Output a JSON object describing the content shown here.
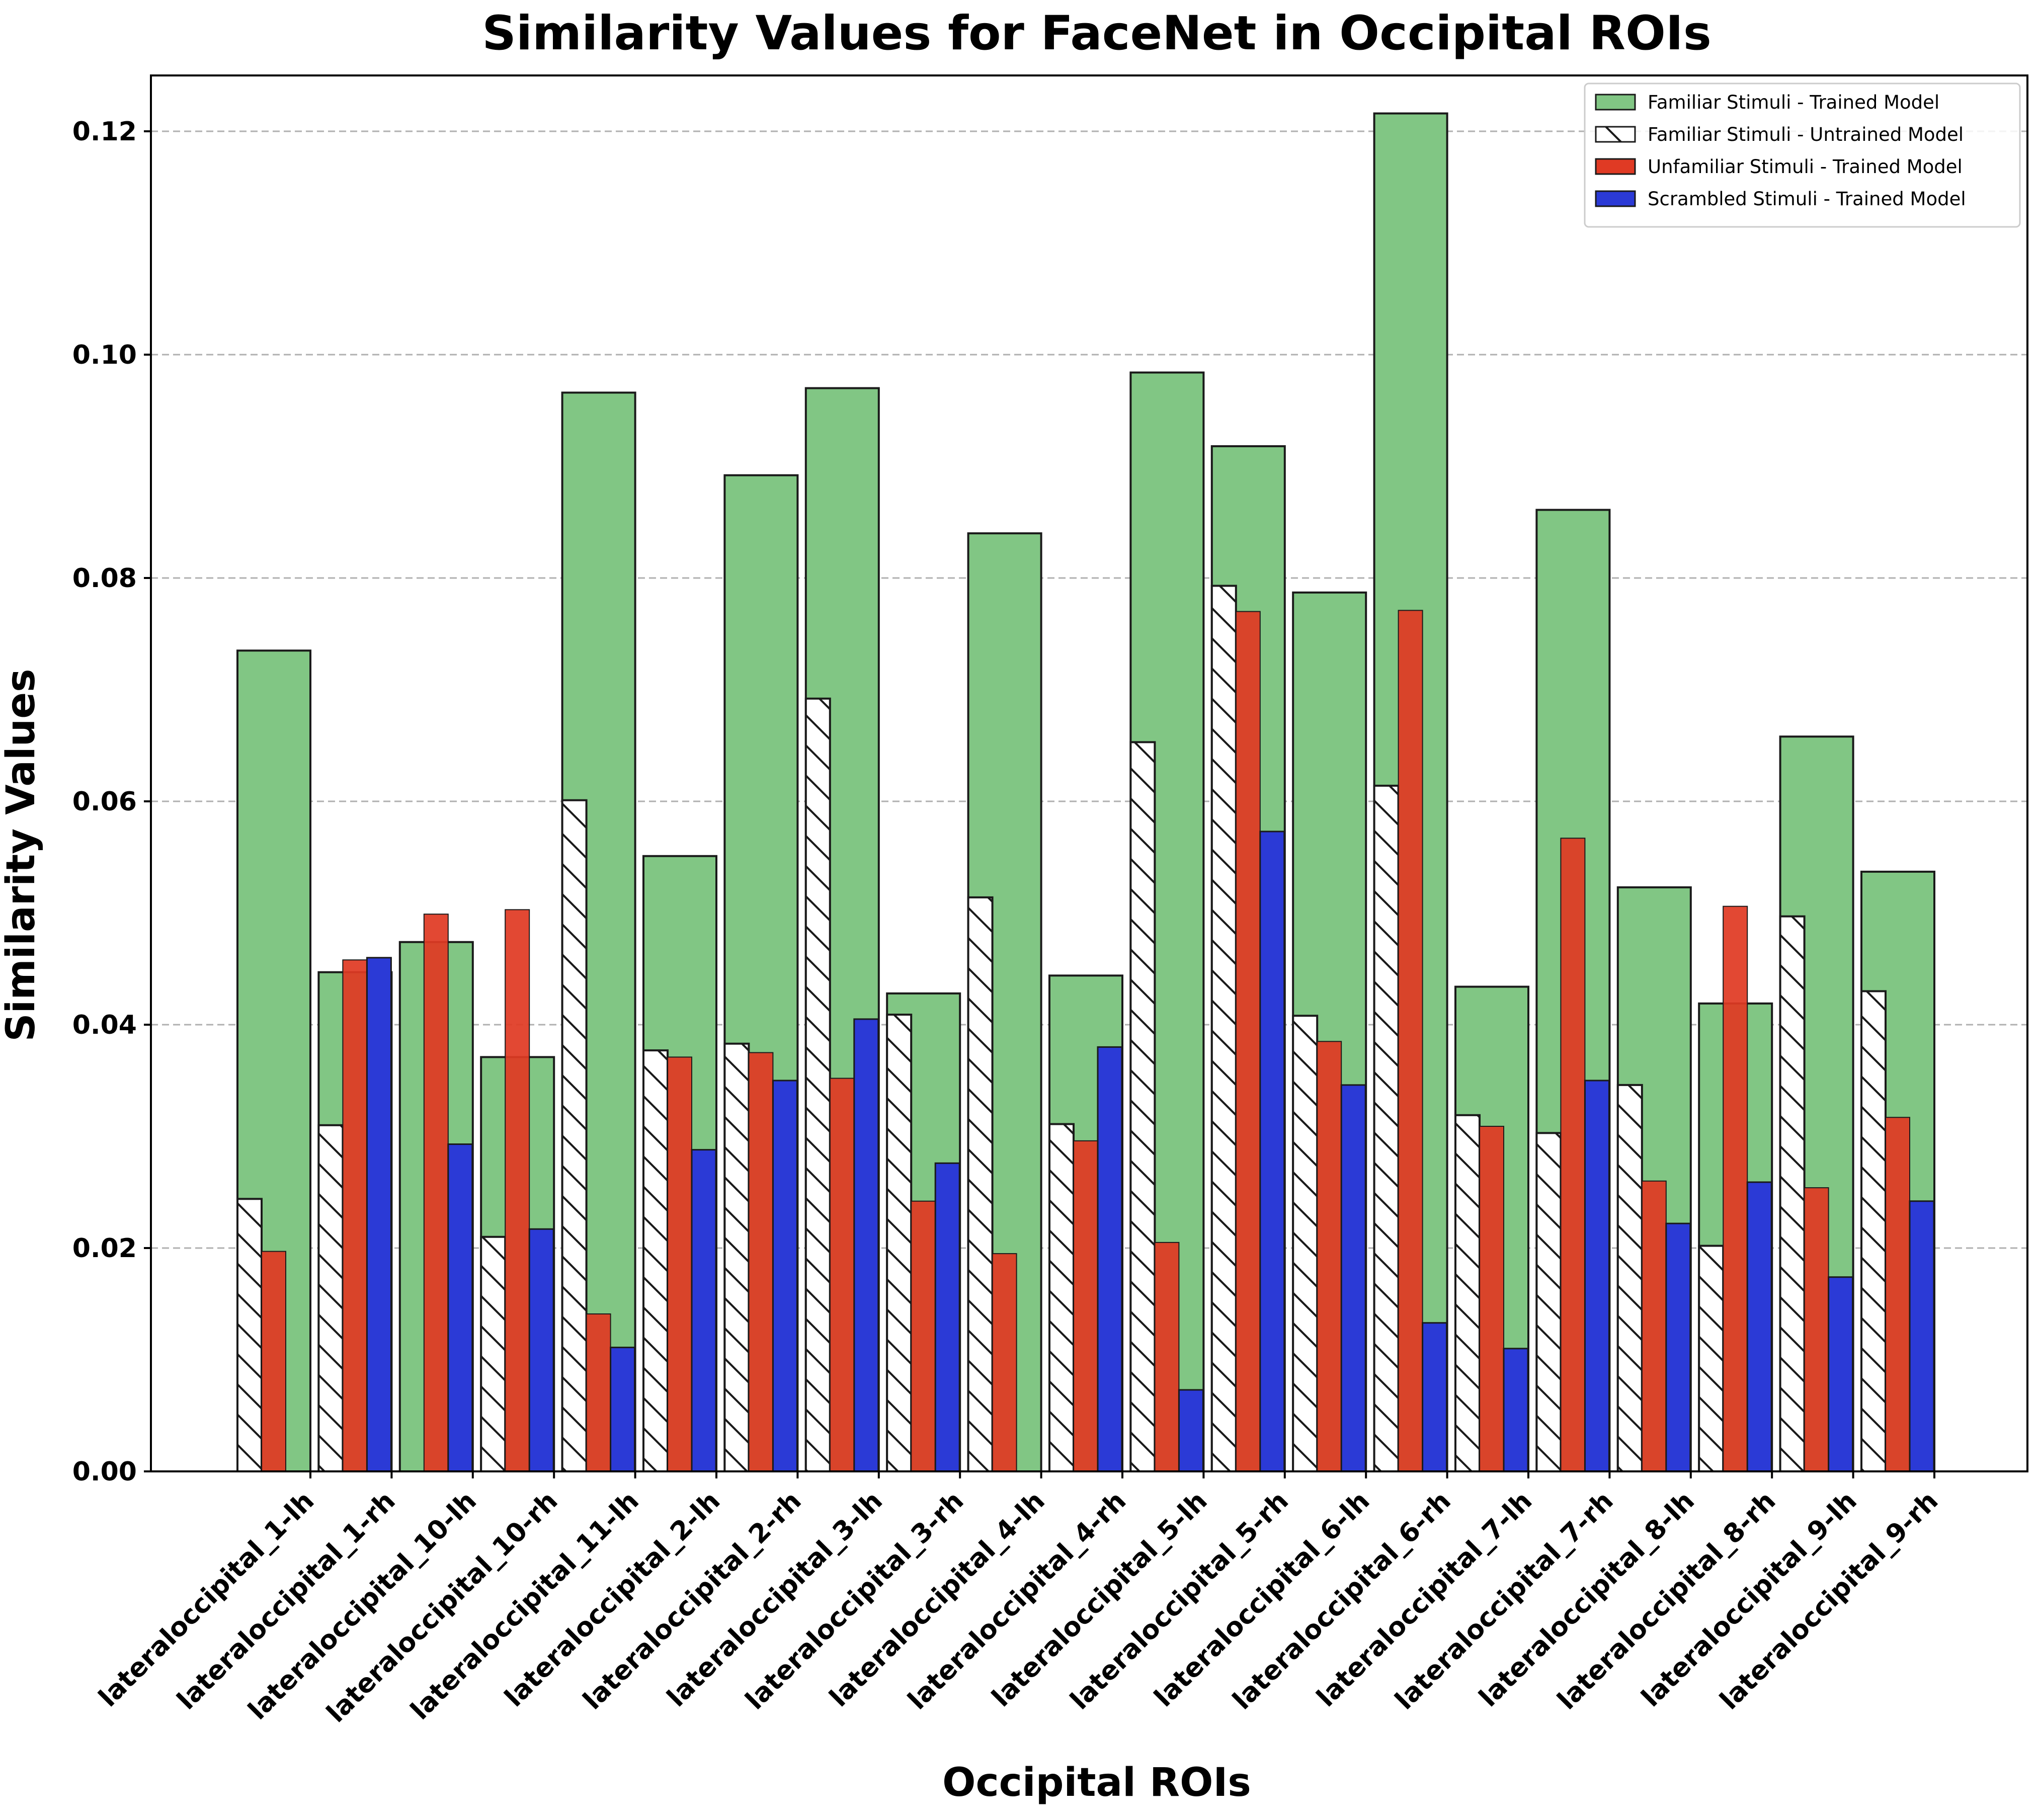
{
  "colors": {
    "familiar_trained": "#81c684",
    "familiar_untrained": "#ffffff",
    "unfamiliar_trained": "#e03a24",
    "scrambled_trained": "#2b3ad6",
    "edge": "#1a1a1a"
  },
  "chart_data": {
    "type": "bar",
    "title": "Similarity Values for FaceNet in Occipital ROIs",
    "xlabel": "Occipital ROIs",
    "ylabel": "Similarity Values",
    "ylim": [
      0,
      0.125
    ],
    "yticks": [
      "0.00",
      "0.02",
      "0.04",
      "0.06",
      "0.08",
      "0.10",
      "0.12"
    ],
    "ytick_values": [
      0,
      0.02,
      0.04,
      0.06,
      0.08,
      0.1,
      0.12
    ],
    "grid": "horizontal dashed",
    "legend_position": "top-right",
    "categories": [
      "lateraloccipital_1-lh",
      "lateraloccipital_1-rh",
      "lateraloccipital_10-lh",
      "lateraloccipital_10-rh",
      "lateraloccipital_11-lh",
      "lateraloccipital_2-lh",
      "lateraloccipital_2-rh",
      "lateraloccipital_3-lh",
      "lateraloccipital_3-rh",
      "lateraloccipital_4-lh",
      "lateraloccipital_4-rh",
      "lateraloccipital_5-lh",
      "lateraloccipital_5-rh",
      "lateraloccipital_6-lh",
      "lateraloccipital_6-rh",
      "lateraloccipital_7-lh",
      "lateraloccipital_7-rh",
      "lateraloccipital_8-lh",
      "lateraloccipital_8-rh",
      "lateraloccipital_9-lh",
      "lateraloccipital_9-rh"
    ],
    "series": [
      {
        "name": "Familiar Stimuli - Trained Model",
        "style": "green-wide",
        "values": [
          0.0735,
          0.0447,
          0.0474,
          0.0371,
          0.0966,
          0.0551,
          0.0892,
          0.097,
          0.0428,
          0.084,
          0.0444,
          0.0984,
          0.0918,
          0.0787,
          0.1216,
          0.0434,
          0.0861,
          0.0523,
          0.0419,
          0.0658,
          0.0537
        ]
      },
      {
        "name": "Familiar Stimuli - Untrained Model",
        "style": "white-hatched",
        "values": [
          0.0244,
          0.031,
          0.0,
          0.021,
          0.0601,
          0.0377,
          0.0383,
          0.0692,
          0.0409,
          0.0514,
          0.0311,
          0.0653,
          0.0793,
          0.0408,
          0.0614,
          0.0319,
          0.0303,
          0.0346,
          0.0202,
          0.0497,
          0.043
        ]
      },
      {
        "name": "Unfamiliar Stimuli - Trained Model",
        "style": "red",
        "values": [
          0.0197,
          0.0458,
          0.0499,
          0.0503,
          0.0141,
          0.0371,
          0.0375,
          0.0352,
          0.0242,
          0.0195,
          0.0296,
          0.0205,
          0.077,
          0.0385,
          0.0771,
          0.0309,
          0.0567,
          0.026,
          0.0506,
          0.0254,
          0.0317
        ]
      },
      {
        "name": "Scrambled Stimuli - Trained Model",
        "style": "blue",
        "values": [
          0.0,
          0.046,
          0.0293,
          0.0217,
          0.0111,
          0.0288,
          0.035,
          0.0405,
          0.0276,
          0.0,
          0.038,
          0.0073,
          0.0573,
          0.0346,
          0.0133,
          0.011,
          0.035,
          0.0222,
          0.0259,
          0.0174,
          0.0242
        ]
      }
    ]
  }
}
